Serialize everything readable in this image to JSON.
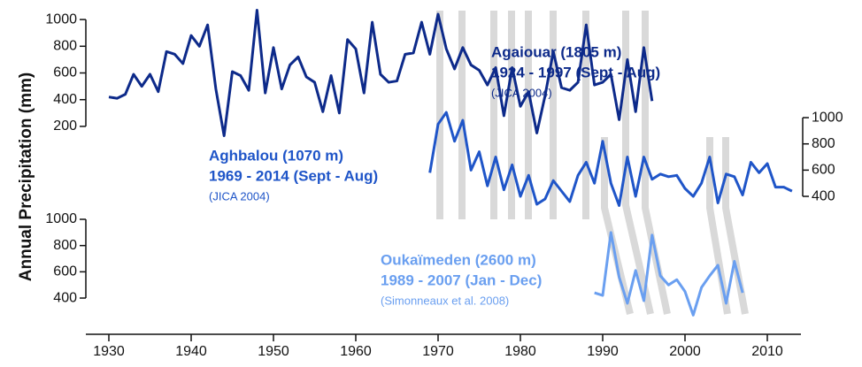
{
  "chart_data": [
    {
      "type": "line",
      "ylabel": "Annual Precipitation (mm)",
      "axis_side": "left",
      "labels": [
        "Agaiouar (1805 m)",
        "1924 - 1997 (Sept - Aug)",
        "(JICA 2004)"
      ],
      "xlim": [
        1928,
        2014
      ],
      "ylim": [
        100,
        1100
      ],
      "yticks": [
        200,
        400,
        600,
        800,
        1000
      ],
      "color": "#0d2a8a",
      "x": [
        1930,
        1931,
        1932,
        1933,
        1934,
        1935,
        1936,
        1937,
        1938,
        1939,
        1940,
        1941,
        1942,
        1943,
        1944,
        1945,
        1946,
        1947,
        1948,
        1949,
        1950,
        1951,
        1952,
        1953,
        1954,
        1955,
        1956,
        1957,
        1958,
        1959,
        1960,
        1961,
        1962,
        1963,
        1964,
        1965,
        1966,
        1967,
        1968,
        1969,
        1970,
        1971,
        1972,
        1973,
        1974,
        1975,
        1976,
        1977,
        1978,
        1979,
        1980,
        1981,
        1982,
        1983,
        1984,
        1985,
        1986,
        1987,
        1988,
        1989,
        1990,
        1991,
        1992,
        1993,
        1994,
        1995,
        1996
      ],
      "values": [
        420,
        410,
        440,
        590,
        500,
        590,
        460,
        760,
        740,
        670,
        880,
        800,
        960,
        480,
        130,
        610,
        580,
        470,
        1070,
        450,
        790,
        480,
        660,
        720,
        570,
        530,
        310,
        580,
        300,
        850,
        780,
        450,
        980,
        590,
        530,
        540,
        740,
        750,
        980,
        740,
        1040,
        780,
        630,
        790,
        660,
        620,
        510,
        640,
        280,
        640,
        350,
        460,
        150,
        430,
        760,
        490,
        470,
        530,
        960,
        510,
        530,
        590,
        250,
        700,
        310,
        790,
        390
      ]
    },
    {
      "type": "line",
      "axis_side": "right",
      "labels": [
        "Aghbalou (1070 m)",
        "1969 - 2014 (Sept - Aug)",
        "(JICA 2004)"
      ],
      "xlim": [
        1928,
        2014
      ],
      "ylim": [
        250,
        1100
      ],
      "yticks": [
        400,
        600,
        800,
        1000
      ],
      "color": "#1f55c8",
      "x": [
        1969,
        1970,
        1971,
        1972,
        1973,
        1974,
        1975,
        1976,
        1977,
        1978,
        1979,
        1980,
        1981,
        1982,
        1983,
        1984,
        1985,
        1986,
        1987,
        1988,
        1989,
        1990,
        1991,
        1992,
        1993,
        1994,
        1995,
        1996,
        1997,
        1998,
        1999,
        2000,
        2001,
        2002,
        2003,
        2004,
        2005,
        2006,
        2007,
        2008,
        2009,
        2010,
        2011,
        2012,
        2013
      ],
      "values": [
        580,
        950,
        1040,
        820,
        980,
        600,
        740,
        480,
        700,
        450,
        640,
        400,
        560,
        340,
        380,
        520,
        440,
        360,
        560,
        660,
        500,
        820,
        500,
        330,
        700,
        400,
        700,
        530,
        570,
        550,
        560,
        460,
        400,
        500,
        700,
        350,
        570,
        550,
        410,
        660,
        580,
        650,
        470,
        470,
        440
      ]
    },
    {
      "type": "line",
      "axis_side": "left",
      "labels": [
        "Oukaïmeden (2600 m)",
        "1989 - 2007 (Jan - Dec)",
        "(Simonneaux et al. 2008)"
      ],
      "xlim": [
        1928,
        2014
      ],
      "ylim": [
        250,
        1000
      ],
      "yticks": [
        400,
        600,
        800,
        1000
      ],
      "xticks": [
        1930,
        1940,
        1950,
        1960,
        1970,
        1980,
        1990,
        2000,
        2010
      ],
      "color": "#6a9ff0",
      "x": [
        1989,
        1990,
        1991,
        1992,
        1993,
        1994,
        1995,
        1996,
        1997,
        1998,
        1999,
        2000,
        2001,
        2002,
        2003,
        2004,
        2005,
        2006,
        2007
      ],
      "values": [
        440,
        420,
        900,
        560,
        360,
        610,
        380,
        880,
        570,
        500,
        540,
        450,
        270,
        480,
        570,
        650,
        360,
        680,
        440
      ]
    }
  ]
}
